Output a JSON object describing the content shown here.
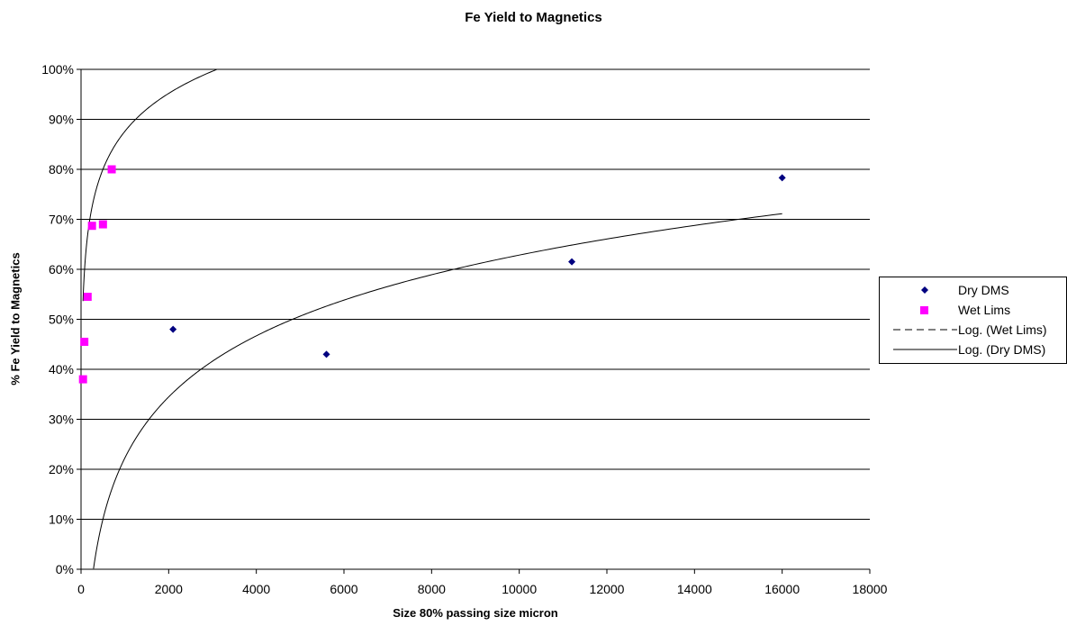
{
  "chart_data": {
    "type": "scatter",
    "title": "Fe Yield to Magnetics",
    "xlabel": "Size 80% passing size micron",
    "ylabel": "% Fe Yield to Magnetics",
    "xlim": [
      0,
      18000
    ],
    "ylim": [
      0,
      1
    ],
    "x_ticks": [
      0,
      2000,
      4000,
      6000,
      8000,
      10000,
      12000,
      14000,
      16000,
      18000
    ],
    "x_tick_labels": [
      "0",
      "2000",
      "4000",
      "6000",
      "8000",
      "10000",
      "12000",
      "14000",
      "16000",
      "18000"
    ],
    "y_ticks": [
      0,
      0.1,
      0.2,
      0.3,
      0.4,
      0.5,
      0.6,
      0.7,
      0.8,
      0.9,
      1.0
    ],
    "y_tick_labels": [
      "0%",
      "10%",
      "20%",
      "30%",
      "40%",
      "50%",
      "60%",
      "70%",
      "80%",
      "90%",
      "100%"
    ],
    "grid": "horizontal",
    "legend_position": "right",
    "series": [
      {
        "name": "Dry DMS",
        "marker": "diamond",
        "color": "#000080",
        "x": [
          2100,
          5600,
          11200,
          16000
        ],
        "y": [
          0.48,
          0.43,
          0.615,
          0.783
        ]
      },
      {
        "name": "Wet Lims",
        "marker": "square",
        "color": "#ff00ff",
        "x": [
          45,
          75,
          150,
          250,
          500,
          700
        ],
        "y": [
          0.38,
          0.455,
          0.545,
          0.687,
          0.69,
          0.8
        ]
      }
    ],
    "trendlines": [
      {
        "name": "Log. (Wet Lims)",
        "of": "Wet Lims",
        "kind": "logarithmic",
        "style": "dashed",
        "color": "#000000",
        "a": 0.1095,
        "b": 0.1196,
        "x_range": [
          45,
          3100
        ]
      },
      {
        "name": "Log. (Dry DMS)",
        "of": "Dry DMS",
        "kind": "logarithmic",
        "style": "solid",
        "color": "#000000",
        "a": 0.1763,
        "b": -0.9953,
        "x_range": [
          285,
          16000
        ]
      }
    ]
  }
}
